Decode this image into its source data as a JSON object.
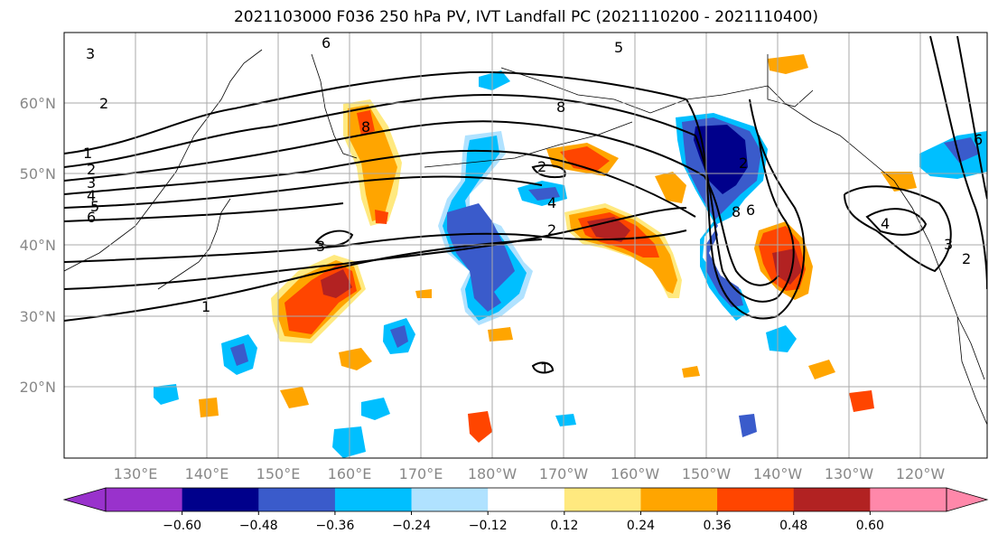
{
  "title": "2021103000 F036 250 hPa PV, IVT Landfall PC (2021110200 - 2021110400)",
  "lat_labels": [
    "60°N",
    "50°N",
    "40°N",
    "30°N",
    "20°N"
  ],
  "lon_labels": [
    "130°E",
    "140°E",
    "150°E",
    "160°E",
    "170°E",
    "180°W",
    "170°W",
    "160°W",
    "150°W",
    "140°W",
    "130°W",
    "120°W"
  ],
  "colorbar": {
    "ticks": [
      "−0.60",
      "−0.48",
      "−0.36",
      "−0.24",
      "−0.12",
      "0.12",
      "0.24",
      "0.36",
      "0.48",
      "0.60"
    ],
    "colors": [
      "#9932CC",
      "#00008B",
      "#3A5BCB",
      "#00BFFF",
      "#B0E2FF",
      "#FFFFFF",
      "#FFE97F",
      "#FFA500",
      "#FF4500",
      "#B22222",
      "#FF88AA"
    ]
  },
  "contour_labels": [
    "3",
    "2",
    "1",
    "2",
    "3",
    "4",
    "5",
    "6",
    "6",
    "8",
    "5",
    "2",
    "2",
    "4",
    "3",
    "1",
    "1",
    "8",
    "2",
    "4",
    "3",
    "2",
    "8",
    "6",
    "6"
  ],
  "fill_colors": {
    "dark_blue": "#00008B",
    "blue": "#3A5BCB",
    "cyan": "#00BFFF",
    "light_blue": "#B0E2FF",
    "yellow": "#FFE97F",
    "orange": "#FFA500",
    "red_orange": "#FF4500",
    "dark_red": "#B22222"
  }
}
